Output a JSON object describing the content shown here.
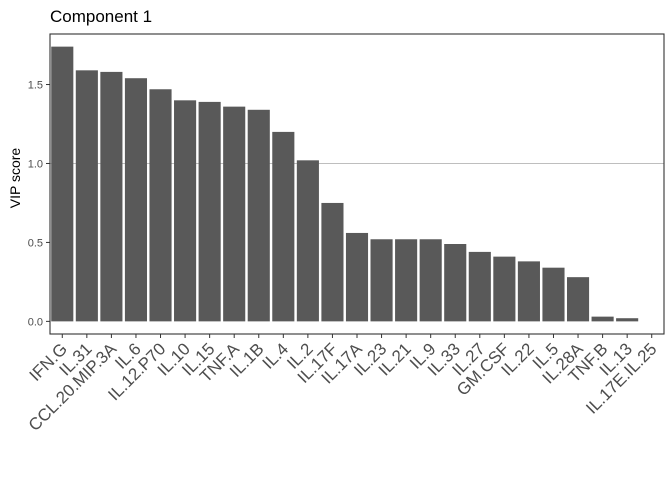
{
  "chart_data": {
    "type": "bar",
    "title": "Component 1",
    "xlabel": "",
    "ylabel": "VIP score",
    "ylim": [
      -0.08,
      1.82
    ],
    "yticks": [
      "0.0",
      "0.5",
      "1.0",
      "1.5"
    ],
    "ytick_values": [
      0,
      0.5,
      1.0,
      1.5
    ],
    "reference_line": 1.0,
    "reference_line_color": "#bebebe",
    "bar_color": "#595959",
    "grid": false,
    "legend": "none",
    "categories": [
      "IFN.G",
      "IL.31",
      "CCL.20.MIP.3A",
      "IL.6",
      "IL.12.P70",
      "IL.10",
      "IL.15",
      "TNF.A",
      "IL.1B",
      "IL.4",
      "IL.2",
      "IL.17F",
      "IL.17A",
      "IL.23",
      "IL.21",
      "IL.9",
      "IL.33",
      "IL.27",
      "GM.CSF",
      "IL.22",
      "IL.5",
      "IL.28A",
      "TNF.B",
      "IL.13",
      "IL.17E.IL.25"
    ],
    "values": [
      1.74,
      1.59,
      1.58,
      1.54,
      1.47,
      1.4,
      1.39,
      1.36,
      1.34,
      1.2,
      1.02,
      0.75,
      0.56,
      0.52,
      0.52,
      0.52,
      0.49,
      0.44,
      0.41,
      0.38,
      0.34,
      0.28,
      0.03,
      0.02,
      0.0
    ]
  }
}
